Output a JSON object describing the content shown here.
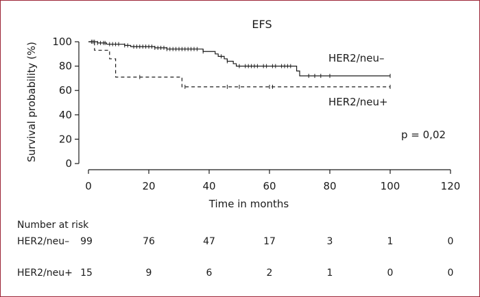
{
  "chart_data": {
    "type": "line",
    "step": true,
    "title": "EFS",
    "xlabel": "Time in months",
    "ylabel": "Survival probability (%)",
    "xlim": [
      0,
      120
    ],
    "ylim": [
      0,
      100
    ],
    "xticks": [
      0,
      20,
      40,
      60,
      80,
      100,
      120
    ],
    "yticks": [
      0,
      20,
      40,
      60,
      80,
      100
    ],
    "legend": "inline-right",
    "annotation": "p = 0,02",
    "series": [
      {
        "name": "HER2/neu–",
        "style": "solid",
        "color": "#1a1a1a",
        "label_value": 83,
        "steps": [
          [
            0,
            100
          ],
          [
            3,
            99
          ],
          [
            6,
            98
          ],
          [
            12,
            97
          ],
          [
            14,
            96
          ],
          [
            22,
            95
          ],
          [
            26,
            94
          ],
          [
            38,
            92
          ],
          [
            42,
            90
          ],
          [
            43,
            88
          ],
          [
            45,
            86
          ],
          [
            46,
            84
          ],
          [
            48,
            82
          ],
          [
            49,
            80
          ],
          [
            69,
            76
          ],
          [
            70,
            72
          ],
          [
            100,
            72
          ]
        ],
        "censors": [
          1.5,
          2,
          3,
          4,
          5,
          5.5,
          7,
          8,
          9,
          10,
          12,
          13,
          15,
          16,
          17,
          18,
          19,
          20,
          21,
          22,
          23,
          24,
          25,
          26,
          27,
          28,
          29,
          30,
          31,
          32,
          33,
          34,
          35,
          36,
          38,
          44,
          46,
          50,
          52,
          53,
          54,
          55,
          56,
          58,
          59,
          61,
          62,
          64,
          65,
          66,
          67,
          73,
          75,
          77,
          80,
          100
        ]
      },
      {
        "name": "HER2/neu+",
        "style": "dashed",
        "color": "#1a1a1a",
        "label_value": 50,
        "steps": [
          [
            0,
            100
          ],
          [
            2,
            93
          ],
          [
            7,
            86
          ],
          [
            9,
            71
          ],
          [
            31,
            63
          ],
          [
            100,
            63
          ]
        ],
        "censors": [
          1,
          17,
          32,
          46,
          50,
          60,
          61,
          100
        ]
      }
    ],
    "risk_table": {
      "title": "Number at risk",
      "times": [
        0,
        20,
        40,
        60,
        80,
        100,
        120
      ],
      "rows": [
        {
          "label": "HER2/neu–",
          "counts": [
            99,
            76,
            47,
            17,
            3,
            1,
            0
          ]
        },
        {
          "label": "HER2/neu+",
          "counts": [
            15,
            9,
            6,
            2,
            1,
            0,
            0
          ]
        }
      ]
    }
  }
}
